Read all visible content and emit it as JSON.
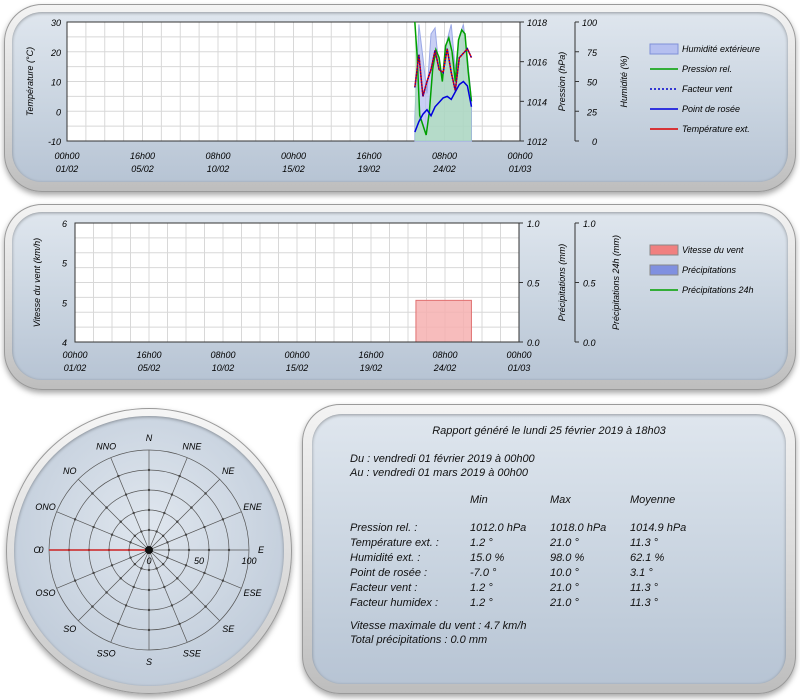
{
  "chart_data": [
    {
      "type": "line",
      "name_hint": "weather-top",
      "y_left_label": "Température (°C)",
      "y_left_ticks": [
        "30",
        "20",
        "10",
        "0",
        "-10"
      ],
      "y_pressure_label": "Pression (hPa)",
      "y_pressure_ticks": [
        "1018",
        "1016",
        "1014",
        "1012"
      ],
      "y_humidity_label": "Humidité (%)",
      "y_humidity_ticks": [
        "100",
        "75",
        "50",
        "25",
        "0"
      ],
      "x_ticks": [
        [
          "00h00",
          "01/02"
        ],
        [
          "16h00",
          "05/02"
        ],
        [
          "08h00",
          "10/02"
        ],
        [
          "00h00",
          "15/02"
        ],
        [
          "16h00",
          "19/02"
        ],
        [
          "08h00",
          "24/02"
        ],
        [
          "00h00",
          "01/03"
        ]
      ],
      "ylim_temp": [
        -10,
        30
      ],
      "ylim_pressure": [
        1012,
        1018
      ],
      "ylim_humidity": [
        0,
        100
      ],
      "legend": [
        {
          "name": "Humidité extérieure",
          "color": "#9aa8e6",
          "kind": "area"
        },
        {
          "name": "Pression rel.",
          "color": "#00a000",
          "kind": "line"
        },
        {
          "name": "Facteur vent",
          "color": "#0000cc",
          "kind": "dotted"
        },
        {
          "name": "Point de rosée",
          "color": "#0000dd",
          "kind": "line"
        },
        {
          "name": "Température ext.",
          "color": "#dd0000",
          "kind": "line"
        }
      ],
      "series": [
        {
          "name": "Humidité extérieure",
          "unit": "%",
          "x": [
            22.5,
            22.75,
            23.0,
            23.25,
            23.5,
            23.75,
            24.0,
            24.25,
            24.5,
            24.75,
            25.0,
            25.25,
            25.5,
            25.75,
            26.0
          ],
          "values": [
            20,
            98,
            70,
            40,
            90,
            95,
            60,
            55,
            85,
            98,
            60,
            88,
            98,
            70,
            35
          ]
        },
        {
          "name": "Pression rel.",
          "unit": "hPa",
          "x": [
            22.5,
            22.65,
            22.8,
            23.0,
            23.2,
            23.4,
            23.6,
            23.8,
            24.0,
            24.2,
            24.4,
            24.6,
            24.8,
            25.0,
            25.2,
            25.4,
            25.6,
            25.8,
            26.0
          ],
          "values": [
            1018.0,
            1016.2,
            1013.3,
            1012.8,
            1012.3,
            1013.5,
            1015.6,
            1016.6,
            1016.2,
            1015.0,
            1016.8,
            1017.2,
            1016.5,
            1015.0,
            1017.1,
            1017.6,
            1017.4,
            1015.5,
            1014.0
          ]
        },
        {
          "name": "Point de rosée",
          "unit": "°C",
          "x": [
            22.5,
            22.75,
            23.0,
            23.25,
            23.5,
            23.75,
            24.0,
            24.25,
            24.5,
            24.75,
            25.0,
            25.25,
            25.5,
            25.75,
            26.0
          ],
          "values": [
            -7.0,
            -3.5,
            -1.0,
            0.5,
            -1.5,
            1.5,
            3.0,
            4.5,
            5.0,
            4.0,
            6.5,
            9.0,
            10.0,
            8.5,
            1.5
          ]
        },
        {
          "name": "Température ext.",
          "unit": "°C",
          "x": [
            22.5,
            22.75,
            23.0,
            23.25,
            23.5,
            23.75,
            24.0,
            24.25,
            24.5,
            24.75,
            25.0,
            25.25,
            25.5,
            25.75,
            26.0
          ],
          "values": [
            8.0,
            19.0,
            5.0,
            10.0,
            14.0,
            20.5,
            14.0,
            13.0,
            21.0,
            13.0,
            7.0,
            18.0,
            19.5,
            21.0,
            18.0
          ]
        },
        {
          "name": "Facteur vent",
          "unit": "°C",
          "x": [
            22.5,
            22.75,
            23.0,
            23.25,
            23.5,
            23.75,
            24.0,
            24.25,
            24.5,
            24.75,
            25.0,
            25.25,
            25.5,
            25.75,
            26.0
          ],
          "values": [
            8.0,
            19.0,
            5.0,
            10.0,
            14.0,
            20.5,
            14.0,
            13.0,
            21.0,
            13.0,
            7.0,
            18.0,
            19.5,
            21.0,
            18.0
          ]
        }
      ]
    },
    {
      "type": "bar",
      "name_hint": "wind-rain",
      "y_left_label": "Vitesse du vent (km/h)",
      "y_left_ticks": [
        "6",
        "5",
        "5",
        "4"
      ],
      "y_rain_label": "Précipitations (mm)",
      "y_rain_ticks": [
        "1.0",
        "0.5",
        "0.0"
      ],
      "y_rain24_label": "Précipitations 24h (mm)",
      "y_rain24_ticks": [
        "1.0",
        "0.5",
        "0.0"
      ],
      "x_ticks": [
        [
          "00h00",
          "01/02"
        ],
        [
          "16h00",
          "05/02"
        ],
        [
          "08h00",
          "10/02"
        ],
        [
          "00h00",
          "15/02"
        ],
        [
          "16h00",
          "19/02"
        ],
        [
          "08h00",
          "24/02"
        ],
        [
          "00h00",
          "01/03"
        ]
      ],
      "ylim_wind": [
        4,
        6
      ],
      "ylim_rain": [
        0,
        1
      ],
      "legend": [
        {
          "name": "Vitesse du vent",
          "color": "#f08080",
          "kind": "bar"
        },
        {
          "name": "Précipitations",
          "color": "#8090e0",
          "kind": "bar"
        },
        {
          "name": "Précipitations 24h",
          "color": "#00a000",
          "kind": "line"
        }
      ],
      "series": [
        {
          "name": "Vitesse du vent",
          "unit": "km/h",
          "x_start": 22.5,
          "x_end": 26.0,
          "value": 4.7
        },
        {
          "name": "Précipitations",
          "unit": "mm",
          "values": [
            0
          ]
        },
        {
          "name": "Précipitations 24h",
          "unit": "mm",
          "values": [
            0
          ]
        }
      ]
    },
    {
      "type": "radar",
      "name_hint": "wind-rose",
      "directions": [
        "N",
        "NNE",
        "NE",
        "ENE",
        "E",
        "ESE",
        "SE",
        "SSE",
        "S",
        "SSO",
        "SO",
        "OSO",
        "O",
        "ONO",
        "NO",
        "NNO"
      ],
      "radial_ticks": [
        "0",
        "50",
        "100"
      ],
      "rmax": 100,
      "dominant": {
        "direction": "O",
        "value": 100,
        "color": "#cc2222"
      }
    }
  ],
  "report": {
    "title": "Rapport généré le lundi 25 février 2019 à 18h03",
    "from": "Du : vendredi 01 février 2019 à 00h00",
    "to": "Au : vendredi 01 mars 2019 à 00h00",
    "headers": [
      "Min",
      "Max",
      "Moyenne"
    ],
    "rows": [
      {
        "label": "Pression rel. :",
        "min": "1012.0 hPa",
        "max": "1018.0 hPa",
        "avg": "1014.9 hPa"
      },
      {
        "label": "Température ext. :",
        "min": "1.2 °",
        "max": "21.0 °",
        "avg": "11.3 °"
      },
      {
        "label": "Humidité ext. :",
        "min": "15.0 %",
        "max": "98.0 %",
        "avg": "62.1 %"
      },
      {
        "label": "Point de rosée :",
        "min": "-7.0 °",
        "max": "10.0 °",
        "avg": "3.1 °"
      },
      {
        "label": "Facteur vent :",
        "min": "1.2 °",
        "max": "21.0 °",
        "avg": "11.3 °"
      },
      {
        "label": "Facteur humidex :",
        "min": "1.2 °",
        "max": "21.0 °",
        "avg": "11.3 °"
      }
    ],
    "max_wind": "Vitesse maximale du vent : 4.7 km/h",
    "total_rain": "Total précipitations : 0.0 mm"
  }
}
